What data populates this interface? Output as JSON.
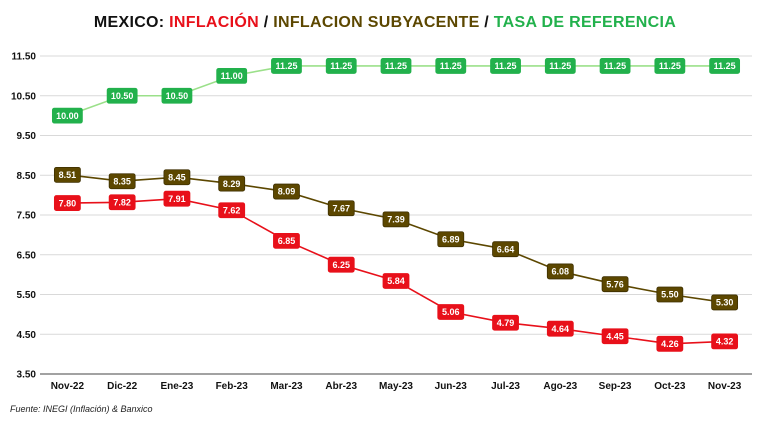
{
  "title": {
    "part1": "MEXICO: ",
    "part2": "INFLACIÓN",
    "sep1": " / ",
    "part3": "INFLACION SUBYACENTE",
    "sep2": " / ",
    "part4": "TASA DE REFERENCIA"
  },
  "colors": {
    "title_base": "#111111",
    "inflacion": "#e8101a",
    "subyacente": "#5c4700",
    "tasa": "#22b14c",
    "tasa_line": "#9be08a",
    "grid": "#d9d9d9",
    "axis": "#444444"
  },
  "footnote": "Fuente: INEGI (Inflación) & Banxico",
  "chart_data": {
    "type": "line",
    "categories": [
      "Nov-22",
      "Dic-22",
      "Ene-23",
      "Feb-23",
      "Mar-23",
      "Abr-23",
      "May-23",
      "Jun-23",
      "Jul-23",
      "Ago-23",
      "Sep-23",
      "Oct-23",
      "Nov-23"
    ],
    "ylim": [
      3.5,
      11.5
    ],
    "yticks": [
      "3.50",
      "4.50",
      "5.50",
      "6.50",
      "7.50",
      "8.50",
      "9.50",
      "10.50",
      "11.50"
    ],
    "grid": true,
    "series": [
      {
        "name": "TASA DE REFERENCIA",
        "key": "tasa",
        "values": [
          10.0,
          10.5,
          10.5,
          11.0,
          11.25,
          11.25,
          11.25,
          11.25,
          11.25,
          11.25,
          11.25,
          11.25,
          11.25
        ],
        "labels": [
          "10.00",
          "10.50",
          "10.50",
          "11.00",
          "11.25",
          "11.25",
          "11.25",
          "11.25",
          "11.25",
          "11.25",
          "11.25",
          "11.25",
          "11.25"
        ]
      },
      {
        "name": "INFLACION SUBYACENTE",
        "key": "subyacente",
        "values": [
          8.51,
          8.35,
          8.45,
          8.29,
          8.09,
          7.67,
          7.39,
          6.89,
          6.64,
          6.08,
          5.76,
          5.5,
          5.3
        ],
        "labels": [
          "8.51",
          "8.35",
          "8.45",
          "8.29",
          "8.09",
          "7.67",
          "7.39",
          "6.89",
          "6.64",
          "6.08",
          "5.76",
          "5.50",
          "5.30"
        ]
      },
      {
        "name": "INFLACIÓN",
        "key": "inflacion",
        "values": [
          7.8,
          7.82,
          7.91,
          7.62,
          6.85,
          6.25,
          5.84,
          5.06,
          4.79,
          4.64,
          4.45,
          4.26,
          4.32
        ],
        "labels": [
          "7.80",
          "7.82",
          "7.91",
          "7.62",
          "6.85",
          "6.25",
          "5.84",
          "5.06",
          "4.79",
          "4.64",
          "4.45",
          "4.26",
          "4.32"
        ]
      }
    ]
  }
}
